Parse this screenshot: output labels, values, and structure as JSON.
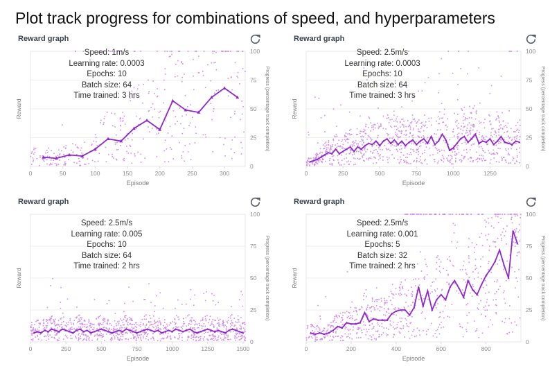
{
  "page": {
    "title": "Plot track progress for combinations of speed, and hyperparameters"
  },
  "colors": {
    "line": "#8f27cc",
    "scatter": "#bd5fe0",
    "grid": "#ededed",
    "plot_border": "#e7e7e7",
    "axis": "#d7d7d7",
    "tick_text": "#8c8c8c",
    "axis_title": "#7d7d7d",
    "header_text": "#3b4450",
    "refresh_icon": "#545b64"
  },
  "chart_data": [
    {
      "type": "scatter",
      "title": "Reward graph",
      "refresh_label": "Refresh",
      "annotations": [
        "Speed: 1m/s",
        "Learning rate: 0.0003",
        "Epochs: 10",
        "Batch size: 64",
        "Time trained: 3 hrs"
      ],
      "xlabel": "Episode",
      "ylabel_left": "Reward",
      "ylabel_right": "Progress (percentage track completion)",
      "xlim": [
        0,
        332
      ],
      "ylim": [
        0,
        100
      ],
      "x_ticks": [
        0,
        50,
        100,
        150,
        200,
        250,
        300
      ],
      "y_ticks": [
        0,
        25,
        50,
        75,
        100
      ],
      "line": {
        "x": [
          20,
          40,
          60,
          80,
          100,
          120,
          140,
          160,
          180,
          200,
          220,
          240,
          260,
          280,
          300,
          320
        ],
        "y": [
          8,
          7,
          10,
          9,
          15,
          24,
          22,
          33,
          40,
          32,
          57,
          49,
          47,
          60,
          68,
          60
        ]
      },
      "scatter_spec": {
        "seed": 11,
        "count": 330,
        "y_mult_min": 0.08,
        "y_mult_max": 2.1,
        "outlier_rate": 0.04,
        "outlier_max": 40,
        "band_100_count": 45,
        "band_100_start": 0.2
      }
    },
    {
      "type": "scatter",
      "title": "Reward graph",
      "refresh_label": "Refresh",
      "annotations": [
        "Speed: 2.5m/s",
        "Learning rate: 0.0003",
        "Epochs: 10",
        "Batch size: 64",
        "Time trained: 3 hrs"
      ],
      "xlabel": "Episode",
      "ylabel_left": "Reward",
      "ylabel_right": "Progress (percentage track completion)",
      "xlim": [
        0,
        1460
      ],
      "ylim": [
        0,
        100
      ],
      "x_ticks": [
        0,
        250,
        500,
        750,
        1000,
        1250
      ],
      "y_ticks": [
        0,
        25,
        50,
        75,
        100
      ],
      "line": {
        "x": [
          25,
          50,
          75,
          100,
          125,
          150,
          175,
          200,
          225,
          250,
          275,
          300,
          325,
          350,
          375,
          400,
          425,
          450,
          475,
          500,
          525,
          550,
          575,
          600,
          625,
          650,
          675,
          700,
          725,
          750,
          775,
          800,
          825,
          850,
          875,
          900,
          925,
          950,
          975,
          1000,
          1025,
          1050,
          1075,
          1100,
          1125,
          1150,
          1175,
          1200,
          1225,
          1250,
          1275,
          1300,
          1325,
          1350,
          1375,
          1400,
          1425,
          1450
        ],
        "y": [
          4,
          5,
          6,
          8,
          10,
          12,
          11,
          15,
          11,
          13,
          15,
          17,
          13,
          17,
          15,
          18,
          20,
          19,
          22,
          18,
          22,
          24,
          20,
          23,
          19,
          22,
          18,
          21,
          23,
          19,
          22,
          24,
          20,
          26,
          19,
          22,
          28,
          23,
          14,
          16,
          20,
          24,
          26,
          21,
          24,
          28,
          20,
          22,
          21,
          24,
          19,
          22,
          26,
          21,
          20,
          19,
          22,
          21
        ]
      },
      "scatter_spec": {
        "seed": 22,
        "count": 950,
        "y_mult_min": 0.1,
        "y_mult_max": 2.0,
        "outlier_rate": 0.08,
        "outlier_max": 55,
        "band_100_count": 12,
        "band_100_start": 0.25
      }
    },
    {
      "type": "scatter",
      "title": "Reward graph",
      "refresh_label": "Refresh",
      "annotations": [
        "Speed: 2.5m/s",
        "Learning rate: 0.005",
        "Epochs: 10",
        "Batch size: 64",
        "Time trained: 2 hrs"
      ],
      "xlabel": "Episode",
      "ylabel_left": "Reward",
      "ylabel_right": "Progress (percentage track completion)",
      "xlim": [
        0,
        1515
      ],
      "ylim": [
        0,
        100
      ],
      "x_ticks": [
        0,
        250,
        500,
        750,
        1000,
        1250,
        1500
      ],
      "y_ticks": [
        0,
        25,
        50,
        75,
        100
      ],
      "line": {
        "x": [
          25,
          50,
          75,
          100,
          125,
          150,
          175,
          200,
          225,
          250,
          275,
          300,
          325,
          350,
          375,
          400,
          425,
          450,
          475,
          500,
          525,
          550,
          575,
          600,
          625,
          650,
          675,
          700,
          725,
          750,
          775,
          800,
          825,
          850,
          875,
          900,
          925,
          950,
          975,
          1000,
          1025,
          1050,
          1075,
          1100,
          1125,
          1150,
          1175,
          1200,
          1225,
          1250,
          1275,
          1300,
          1325,
          1350,
          1375,
          1400,
          1425,
          1450,
          1475,
          1500
        ],
        "y": [
          7,
          8,
          7,
          9,
          8,
          10,
          9,
          8,
          10,
          9,
          8,
          7,
          9,
          10,
          8,
          9,
          7,
          8,
          9,
          10,
          9,
          8,
          7,
          8,
          9,
          8,
          10,
          9,
          8,
          7,
          8,
          9,
          10,
          9,
          8,
          9,
          7,
          8,
          9,
          8,
          10,
          9,
          8,
          9,
          10,
          8,
          7,
          8,
          9,
          10,
          9,
          8,
          9,
          8,
          7,
          9,
          10,
          9,
          8,
          7
        ]
      },
      "scatter_spec": {
        "seed": 33,
        "count": 950,
        "y_mult_min": 0.1,
        "y_mult_max": 2.2,
        "outlier_rate": 0.07,
        "outlier_max": 32,
        "band_100_count": 0,
        "band_100_start": 1
      }
    },
    {
      "type": "scatter",
      "title": "Reward graph",
      "refresh_label": "Refresh",
      "annotations": [
        "Speed: 2.5m/s",
        "Learning rate: 0.001",
        "Epochs: 5",
        "Batch size: 32",
        "Time trained: 2 hrs"
      ],
      "xlabel": "Episode",
      "ylabel_left": "Reward",
      "ylabel_right": "Progress (percentage track completion)",
      "xlim": [
        0,
        955
      ],
      "ylim": [
        0,
        100
      ],
      "x_ticks": [
        0,
        200,
        400,
        600,
        800
      ],
      "y_ticks": [
        0,
        25,
        50,
        75,
        100
      ],
      "line": {
        "x": [
          20,
          40,
          60,
          80,
          100,
          120,
          140,
          160,
          180,
          200,
          220,
          240,
          260,
          280,
          300,
          320,
          340,
          360,
          380,
          400,
          420,
          440,
          460,
          480,
          500,
          520,
          540,
          560,
          580,
          600,
          620,
          640,
          660,
          680,
          700,
          720,
          740,
          760,
          780,
          800,
          820,
          840,
          860,
          880,
          900,
          920,
          940
        ],
        "y": [
          7,
          6,
          7,
          6,
          7,
          9,
          12,
          11,
          15,
          14,
          14,
          15,
          23,
          16,
          18,
          17,
          17,
          17,
          22,
          24,
          25,
          25,
          21,
          27,
          43,
          28,
          40,
          25,
          33,
          37,
          33,
          43,
          48,
          42,
          35,
          48,
          41,
          37,
          45,
          52,
          57,
          63,
          72,
          60,
          50,
          87,
          77
        ]
      },
      "scatter_spec": {
        "seed": 44,
        "count": 700,
        "y_mult_min": 0.08,
        "y_mult_max": 2.0,
        "outlier_rate": 0.05,
        "outlier_max": 35,
        "band_100_count": 70,
        "band_100_start": 0.45
      }
    }
  ]
}
